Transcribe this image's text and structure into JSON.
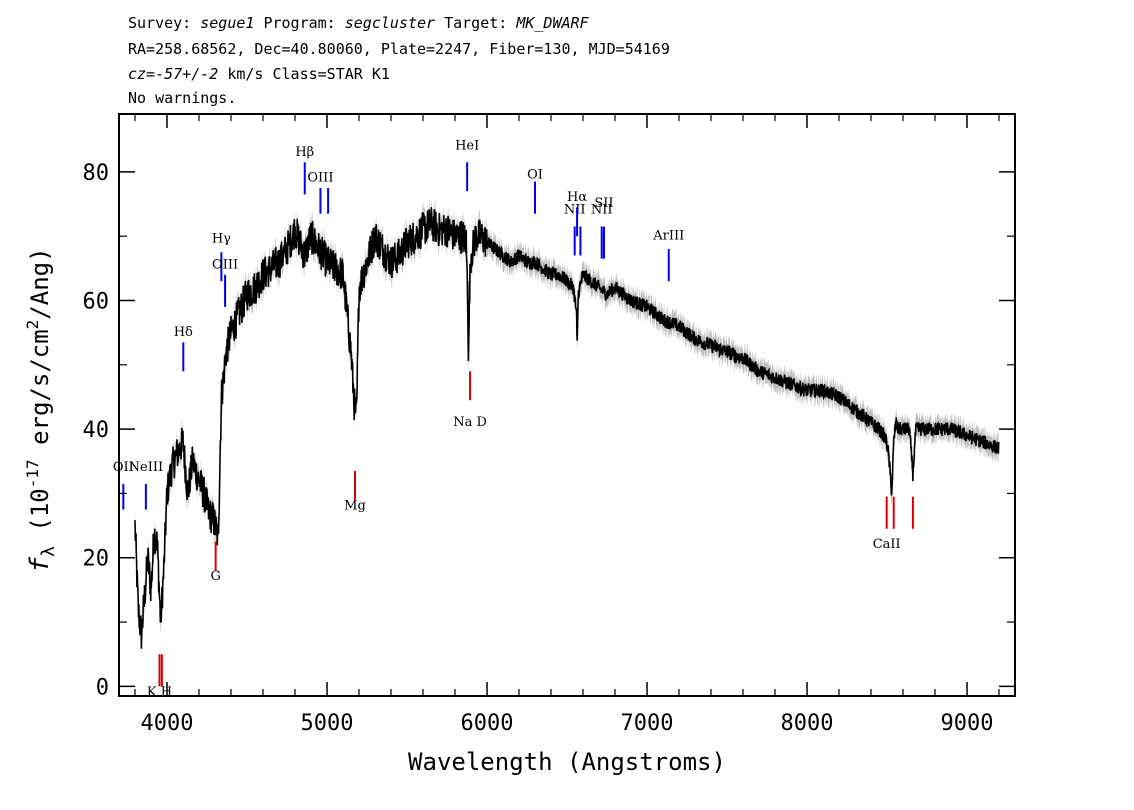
{
  "header": {
    "line1": [
      {
        "text": "Survey: ",
        "italic": false
      },
      {
        "text": "segue1",
        "italic": true
      },
      {
        "text": " Program: ",
        "italic": false
      },
      {
        "text": "segcluster",
        "italic": true
      },
      {
        "text": " Target: ",
        "italic": false
      },
      {
        "text": "MK_DWARF",
        "italic": true
      }
    ],
    "line2": "RA=258.68562, Dec=40.80060, Plate=2247, Fiber=130, MJD=54169",
    "line3": [
      {
        "text": "cz=-57+/-2",
        "italic": true
      },
      {
        "text": " km/s Class=STAR K1",
        "italic": false
      }
    ],
    "line4": "No warnings."
  },
  "chart_data": {
    "type": "line",
    "xlabel": "Wavelength (Angstroms)",
    "ylabel_prefix": "f",
    "ylabel_subscript": "λ",
    "ylabel_text": " (10",
    "ylabel_exp": "-17",
    "ylabel_tail": " erg/s/cm",
    "ylabel_exp2": "2",
    "ylabel_end": "/Ang)",
    "xlim": [
      3700,
      9300
    ],
    "ylim": [
      -1.5,
      89
    ],
    "xticks": [
      4000,
      5000,
      6000,
      7000,
      8000,
      9000
    ],
    "yticks": [
      0,
      20,
      40,
      60,
      80
    ],
    "colors": {
      "spectrum": "#000000",
      "error_band": "#bbbbbb",
      "emission": "#0000ee",
      "absorption": "#dd0000"
    },
    "series": [
      {
        "x": [
          3800,
          3820,
          3840,
          3860,
          3880,
          3900,
          3920,
          3940,
          3960,
          3980,
          4000,
          4030,
          4060,
          4100,
          4130,
          4160,
          4200,
          4230,
          4260,
          4290,
          4320,
          4340,
          4370,
          4400,
          4450,
          4500,
          4550,
          4600,
          4650,
          4700,
          4750,
          4800,
          4830,
          4860,
          4900,
          4950,
          5000,
          5050,
          5100,
          5150,
          5170,
          5185,
          5200,
          5250,
          5300,
          5350,
          5400,
          5450,
          5500,
          5550,
          5600,
          5650,
          5700,
          5750,
          5800,
          5850,
          5870,
          5880,
          5885,
          5890,
          5900,
          5930,
          5960,
          6000,
          6050,
          6100,
          6150,
          6200,
          6250,
          6300,
          6350,
          6400,
          6450,
          6500,
          6540,
          6560,
          6563,
          6570,
          6600,
          6650,
          6700,
          6750,
          6800,
          6900,
          7000,
          7100,
          7200,
          7300,
          7400,
          7500,
          7600,
          7700,
          7800,
          7900,
          8000,
          8100,
          8200,
          8300,
          8400,
          8450,
          8480,
          8498,
          8510,
          8530,
          8542,
          8555,
          8570,
          8600,
          8640,
          8662,
          8680,
          8720,
          8800,
          8900,
          9000,
          9100,
          9200
        ],
        "values": [
          25,
          12,
          8,
          14,
          20,
          15,
          24,
          22,
          10,
          18,
          30,
          34,
          36,
          38,
          30,
          35,
          32,
          30,
          27,
          26,
          23,
          45,
          52,
          55,
          58,
          61,
          62,
          64,
          65,
          66,
          68,
          71,
          69,
          67,
          70,
          68,
          66,
          65,
          64,
          52,
          44,
          42,
          62,
          66,
          70,
          68,
          66,
          67,
          69,
          70,
          71,
          72,
          71,
          71,
          70,
          70,
          69,
          60,
          50,
          61,
          67,
          70,
          70,
          69,
          68,
          67,
          66,
          67,
          66,
          66,
          65,
          64,
          64,
          63,
          62,
          58,
          52,
          61,
          64,
          63,
          62,
          61,
          62,
          60,
          59,
          57,
          56,
          54,
          53,
          52,
          51,
          49,
          48,
          47,
          46,
          46,
          45,
          43,
          41,
          40,
          39,
          38,
          36,
          30,
          38,
          41,
          40,
          40,
          40,
          33,
          40,
          40,
          40,
          40,
          39,
          38,
          37
        ]
      }
    ],
    "line_markers": [
      {
        "label": "OII",
        "wavelength": 3727,
        "kind": "emission",
        "label_y": 33.5,
        "tick_top": 31.5,
        "tick_bottom": 27.5
      },
      {
        "label": "NeIII",
        "wavelength": 3868,
        "kind": "emission",
        "label_y": 33.5,
        "tick_top": 31.5,
        "tick_bottom": 27.5
      },
      {
        "label": "Hδ",
        "wavelength": 4102,
        "kind": "emission",
        "label_y": 54.5,
        "tick_top": 53.5,
        "tick_bottom": 49
      },
      {
        "label": "Hγ",
        "wavelength": 4340,
        "kind": "emission",
        "label_y": 69,
        "tick_top": 67.5,
        "tick_bottom": 63
      },
      {
        "label": "OIII",
        "wavelength": 4363,
        "kind": "emission",
        "label_y": 65,
        "tick_top": 64,
        "tick_bottom": 59
      },
      {
        "label": "Hβ",
        "wavelength": 4861,
        "kind": "emission",
        "label_y": 82.5,
        "tick_top": 81.5,
        "tick_bottom": 76.5
      },
      {
        "label": "OIII",
        "wavelength": 4959,
        "kind": "emission",
        "label_y": 78.5,
        "tick_top": 77.5,
        "tick_bottom": 73.5
      },
      {
        "label": "",
        "wavelength": 5007,
        "kind": "emission",
        "label_y": null,
        "tick_top": 77.5,
        "tick_bottom": 73.5
      },
      {
        "label": "HeI",
        "wavelength": 5876,
        "kind": "emission",
        "label_y": 83.5,
        "tick_top": 81.5,
        "tick_bottom": 77
      },
      {
        "label": "OI",
        "wavelength": 6300,
        "kind": "emission",
        "label_y": 79,
        "tick_top": 78.5,
        "tick_bottom": 73.5
      },
      {
        "label": "NII",
        "wavelength": 6548,
        "kind": "emission",
        "label_y": 73.5,
        "tick_top": 71.5,
        "tick_bottom": 67
      },
      {
        "label": "Hα",
        "wavelength": 6563,
        "kind": "emission",
        "label_y": 75.5,
        "tick_top": 74.5,
        "tick_bottom": 70
      },
      {
        "label": "",
        "wavelength": 6584,
        "kind": "emission",
        "label_y": null,
        "tick_top": 71.5,
        "tick_bottom": 67
      },
      {
        "label": "NII",
        "wavelength": 6717,
        "kind": "emission",
        "label_y": 73.5,
        "tick_top": 71.5,
        "tick_bottom": 66.5
      },
      {
        "label": "SII",
        "wavelength": 6731,
        "kind": "emission",
        "label_y": 74.5,
        "tick_top": 71.5,
        "tick_bottom": 66.5
      },
      {
        "label": "ArIII",
        "wavelength": 7136,
        "kind": "emission",
        "label_y": 69.5,
        "tick_top": 68,
        "tick_bottom": 63
      },
      {
        "label": "K H",
        "wavelength": 3953,
        "kind": "absorption",
        "label_y": -1.5,
        "tick_top": 5,
        "tick_bottom": 0
      },
      {
        "label": "",
        "wavelength": 3968,
        "kind": "absorption",
        "label_y": null,
        "tick_top": 5,
        "tick_bottom": 0
      },
      {
        "label": "G",
        "wavelength": 4304,
        "kind": "absorption",
        "label_y": 16.5,
        "tick_top": 22.5,
        "tick_bottom": 18
      },
      {
        "label": "Mg",
        "wavelength": 5175,
        "kind": "absorption",
        "label_y": 27.5,
        "tick_top": 33.5,
        "tick_bottom": 29
      },
      {
        "label": "Na D",
        "wavelength": 5894,
        "kind": "absorption",
        "label_y": 40.5,
        "tick_top": 49,
        "tick_bottom": 44.5
      },
      {
        "label": "CaII",
        "wavelength": 8498,
        "kind": "absorption",
        "label_y": 21.5,
        "tick_top": 29.5,
        "tick_bottom": 24.5
      },
      {
        "label": "",
        "wavelength": 8542,
        "kind": "absorption",
        "label_y": null,
        "tick_top": 29.5,
        "tick_bottom": 24.5
      },
      {
        "label": "",
        "wavelength": 8662,
        "kind": "absorption",
        "label_y": null,
        "tick_top": 29.5,
        "tick_bottom": 24.5
      }
    ]
  }
}
